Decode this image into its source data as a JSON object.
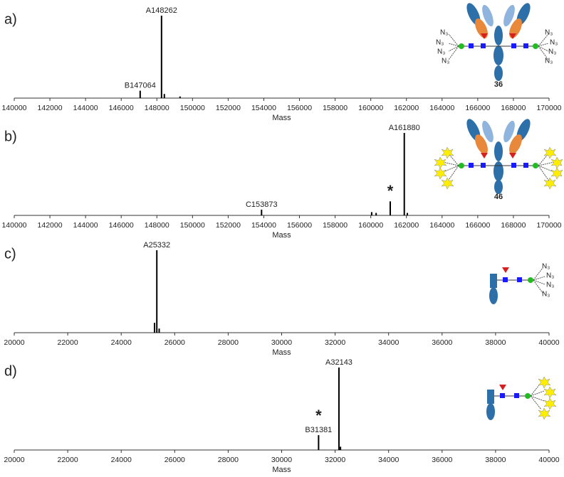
{
  "chart_data": [
    {
      "type": "spectrum",
      "panel_label": "a)",
      "xlabel": "Mass",
      "compound": "36",
      "azide": "N₃",
      "x": [
        147064,
        148262,
        148420,
        149300
      ],
      "values": [
        9,
        100,
        5,
        2
      ],
      "labels": [
        "B147064",
        "A148262",
        null,
        null
      ],
      "color": "#000000",
      "xlim": [
        140000,
        170000
      ],
      "ylim": [
        0,
        100
      ],
      "xticks": [
        140000,
        142000,
        144000,
        146000,
        148000,
        150000,
        152000,
        154000,
        156000,
        158000,
        160000,
        162000,
        164000,
        166000,
        168000,
        170000
      ]
    },
    {
      "type": "spectrum",
      "panel_label": "b)",
      "xlabel": "Mass",
      "compound": "46",
      "x": [
        153873,
        160050,
        160300,
        161092,
        161880,
        162050
      ],
      "values": [
        7,
        4,
        3,
        17,
        100,
        3
      ],
      "labels": [
        "C153873",
        null,
        null,
        "*",
        "A161880",
        null
      ],
      "color": "#000000",
      "xlim": [
        140000,
        170000
      ],
      "ylim": [
        0,
        100
      ],
      "xticks": [
        140000,
        142000,
        144000,
        146000,
        148000,
        150000,
        152000,
        154000,
        156000,
        158000,
        160000,
        162000,
        164000,
        166000,
        168000,
        170000
      ]
    },
    {
      "type": "spectrum",
      "panel_label": "c)",
      "xlabel": "Mass",
      "azide": "N₃",
      "x": [
        25246,
        25332,
        25420
      ],
      "values": [
        12,
        100,
        5
      ],
      "labels": [
        null,
        "A25332",
        null
      ],
      "color": "#000000",
      "xlim": [
        20000,
        40000
      ],
      "ylim": [
        0,
        100
      ],
      "xticks": [
        20000,
        22000,
        24000,
        26000,
        28000,
        30000,
        32000,
        34000,
        36000,
        38000,
        40000
      ]
    },
    {
      "type": "spectrum",
      "panel_label": "d)",
      "xlabel": "Mass",
      "x": [
        31381,
        32143,
        32200
      ],
      "values": [
        18,
        100,
        4
      ],
      "labels": [
        "B31381",
        "A32143",
        null
      ],
      "star": "*",
      "color": "#000000",
      "xlim": [
        20000,
        40000
      ],
      "ylim": [
        0,
        100
      ],
      "xticks": [
        20000,
        22000,
        24000,
        26000,
        28000,
        30000,
        32000,
        34000,
        36000,
        38000,
        40000
      ]
    }
  ]
}
